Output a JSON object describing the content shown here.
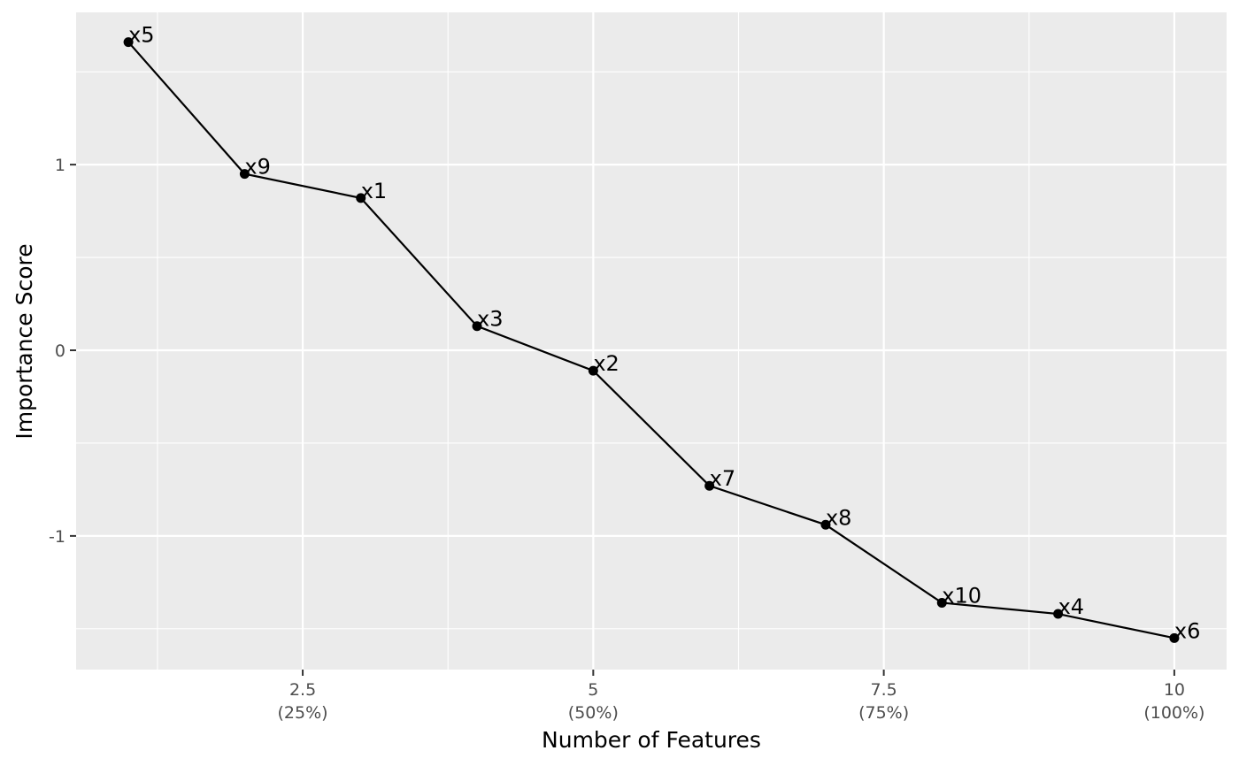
{
  "chart_data": {
    "type": "line",
    "xlabel": "Number of Features",
    "ylabel": "Importance Score",
    "xlim": [
      0.55,
      10.45
    ],
    "ylim": [
      -1.72,
      1.82
    ],
    "x_ticks": [
      {
        "value": 2.5,
        "label": "2.5",
        "sublabel": "(25%)"
      },
      {
        "value": 5,
        "label": "5",
        "sublabel": "(50%)"
      },
      {
        "value": 7.5,
        "label": "7.5",
        "sublabel": "(75%)"
      },
      {
        "value": 10,
        "label": "10",
        "sublabel": "(100%)"
      }
    ],
    "y_ticks": [
      {
        "value": 1,
        "label": "1"
      },
      {
        "value": 0,
        "label": "0"
      },
      {
        "value": -1,
        "label": "-1"
      }
    ],
    "grid": true,
    "points": [
      {
        "x": 1,
        "y": 1.66,
        "label": "x5"
      },
      {
        "x": 2,
        "y": 0.95,
        "label": "x9"
      },
      {
        "x": 3,
        "y": 0.82,
        "label": "x1"
      },
      {
        "x": 4,
        "y": 0.13,
        "label": "x3"
      },
      {
        "x": 5,
        "y": -0.11,
        "label": "x2"
      },
      {
        "x": 6,
        "y": -0.73,
        "label": "x7"
      },
      {
        "x": 7,
        "y": -0.94,
        "label": "x8"
      },
      {
        "x": 8,
        "y": -1.36,
        "label": "x10"
      },
      {
        "x": 9,
        "y": -1.42,
        "label": "x4"
      },
      {
        "x": 10,
        "y": -1.55,
        "label": "x6"
      }
    ],
    "colors": {
      "panel": "#ebebeb",
      "grid": "#ffffff",
      "line": "#000000",
      "point": "#000000"
    }
  }
}
